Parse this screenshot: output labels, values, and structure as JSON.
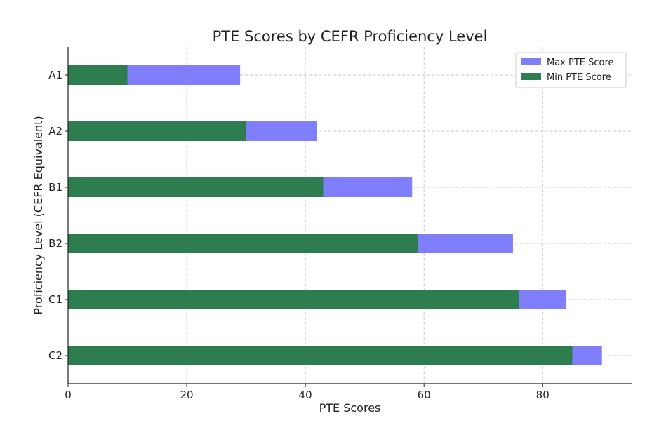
{
  "chart_data": {
    "type": "bar",
    "orientation": "horizontal",
    "title": "PTE Scores by CEFR Proficiency Level",
    "xlabel": "PTE Scores",
    "ylabel": "Proficiency Level (CEFR Equivalent)",
    "categories": [
      "A1",
      "A2",
      "B1",
      "B2",
      "C1",
      "C2"
    ],
    "series": [
      {
        "name": "Max PTE Score",
        "values": [
          29,
          42,
          58,
          75,
          84,
          90
        ],
        "color": "#7f7ffb"
      },
      {
        "name": "Min PTE Score",
        "values": [
          10,
          30,
          43,
          59,
          76,
          85
        ],
        "color": "#2e7d4f"
      }
    ],
    "xlim": [
      0,
      95
    ],
    "xticks": [
      0,
      20,
      40,
      60,
      80
    ],
    "grid": true,
    "legend_position": "top-right"
  }
}
